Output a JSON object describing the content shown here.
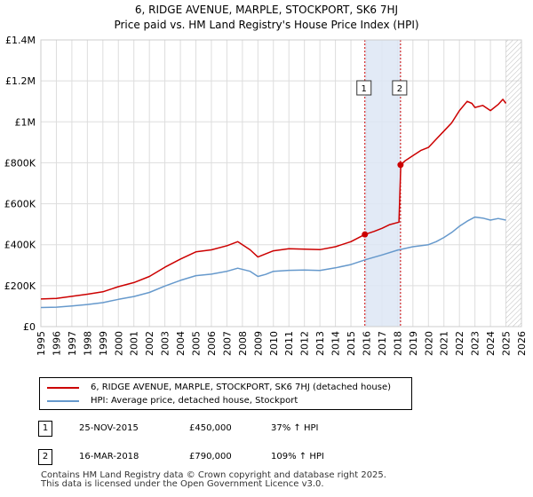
{
  "chart_data": {
    "type": "line",
    "title": "6, RIDGE AVENUE, MARPLE, STOCKPORT, SK6 7HJ",
    "subtitle": "Price paid vs. HM Land Registry's House Price Index (HPI)",
    "xlim": [
      1995,
      2026
    ],
    "ylim": [
      0,
      1400000
    ],
    "x_ticks": [
      "1995",
      "1996",
      "1997",
      "1998",
      "1999",
      "2000",
      "2001",
      "2002",
      "2003",
      "2004",
      "2005",
      "2006",
      "2007",
      "2008",
      "2009",
      "2010",
      "2011",
      "2012",
      "2013",
      "2014",
      "2015",
      "2016",
      "2017",
      "2018",
      "2019",
      "2020",
      "2021",
      "2022",
      "2023",
      "2024",
      "2025",
      "2026"
    ],
    "y_ticks": [
      {
        "value": 0,
        "label": "£0"
      },
      {
        "value": 200000,
        "label": "£200K"
      },
      {
        "value": 400000,
        "label": "£400K"
      },
      {
        "value": 600000,
        "label": "£600K"
      },
      {
        "value": 800000,
        "label": "£800K"
      },
      {
        "value": 1000000,
        "label": "£1M"
      },
      {
        "value": 1200000,
        "label": "£1.2M"
      },
      {
        "value": 1400000,
        "label": "£1.4M"
      }
    ],
    "shaded_period": {
      "from": 2015.9,
      "to": 2018.2
    },
    "future_hatch_from": 2025.0,
    "series": [
      {
        "name": "6, RIDGE AVENUE, MARPLE, STOCKPORT, SK6 7HJ (detached house)",
        "color": "#cc0000",
        "x": [
          1995,
          1996,
          1997,
          1998,
          1999,
          2000,
          2001,
          2002,
          2003,
          2004,
          2005,
          2006,
          2007,
          2007.7,
          2008.5,
          2009,
          2009.5,
          2010,
          2011,
          2012,
          2013,
          2014,
          2015,
          2015.9,
          2016.5,
          2017,
          2017.5,
          2018.1,
          2018.22,
          2018.5,
          2019,
          2019.5,
          2020,
          2020.5,
          2021,
          2021.5,
          2022,
          2022.5,
          2022.8,
          2023,
          2023.5,
          2024,
          2024.5,
          2024.8,
          2025
        ],
        "values": [
          135000,
          138000,
          148000,
          158000,
          170000,
          195000,
          215000,
          245000,
          290000,
          330000,
          365000,
          375000,
          395000,
          415000,
          375000,
          340000,
          355000,
          370000,
          380000,
          378000,
          376000,
          390000,
          415000,
          450000,
          465000,
          480000,
          498000,
          510000,
          790000,
          810000,
          835000,
          860000,
          875000,
          915000,
          955000,
          995000,
          1055000,
          1100000,
          1090000,
          1070000,
          1080000,
          1055000,
          1085000,
          1110000,
          1090000
        ]
      },
      {
        "name": "HPI: Average price, detached house, Stockport",
        "color": "#6699cc",
        "x": [
          1995,
          1996,
          1997,
          1998,
          1999,
          2000,
          2001,
          2002,
          2003,
          2004,
          2005,
          2006,
          2007,
          2007.7,
          2008.5,
          2009,
          2009.5,
          2010,
          2011,
          2012,
          2013,
          2014,
          2015,
          2016,
          2017,
          2018,
          2019,
          2020,
          2020.5,
          2021,
          2021.5,
          2022,
          2022.5,
          2023,
          2023.5,
          2024,
          2024.5,
          2025
        ],
        "values": [
          93000,
          95000,
          101000,
          108000,
          117000,
          133000,
          147000,
          167000,
          198000,
          226000,
          249000,
          256000,
          270000,
          285000,
          270000,
          245000,
          255000,
          270000,
          275000,
          276000,
          274000,
          287000,
          303000,
          328000,
          350000,
          373000,
          390000,
          400000,
          415000,
          435000,
          460000,
          490000,
          515000,
          535000,
          530000,
          520000,
          528000,
          520000
        ]
      }
    ],
    "sales": [
      {
        "id": "1",
        "x": 2015.9,
        "value": 450000
      },
      {
        "id": "2",
        "x": 2018.2,
        "value": 790000
      }
    ]
  },
  "legend": {
    "items": [
      {
        "label": "6, RIDGE AVENUE, MARPLE, STOCKPORT, SK6 7HJ (detached house)",
        "color": "#cc0000"
      },
      {
        "label": "HPI: Average price, detached house, Stockport",
        "color": "#6699cc"
      }
    ]
  },
  "sales_table": [
    {
      "num": "1",
      "date": "25-NOV-2015",
      "price": "£450,000",
      "hpi": "37% ↑ HPI"
    },
    {
      "num": "2",
      "date": "16-MAR-2018",
      "price": "£790,000",
      "hpi": "109% ↑ HPI"
    }
  ],
  "footer": {
    "line1": "Contains HM Land Registry data © Crown copyright and database right 2025.",
    "line2": "This data is licensed under the Open Government Licence v3.0."
  }
}
